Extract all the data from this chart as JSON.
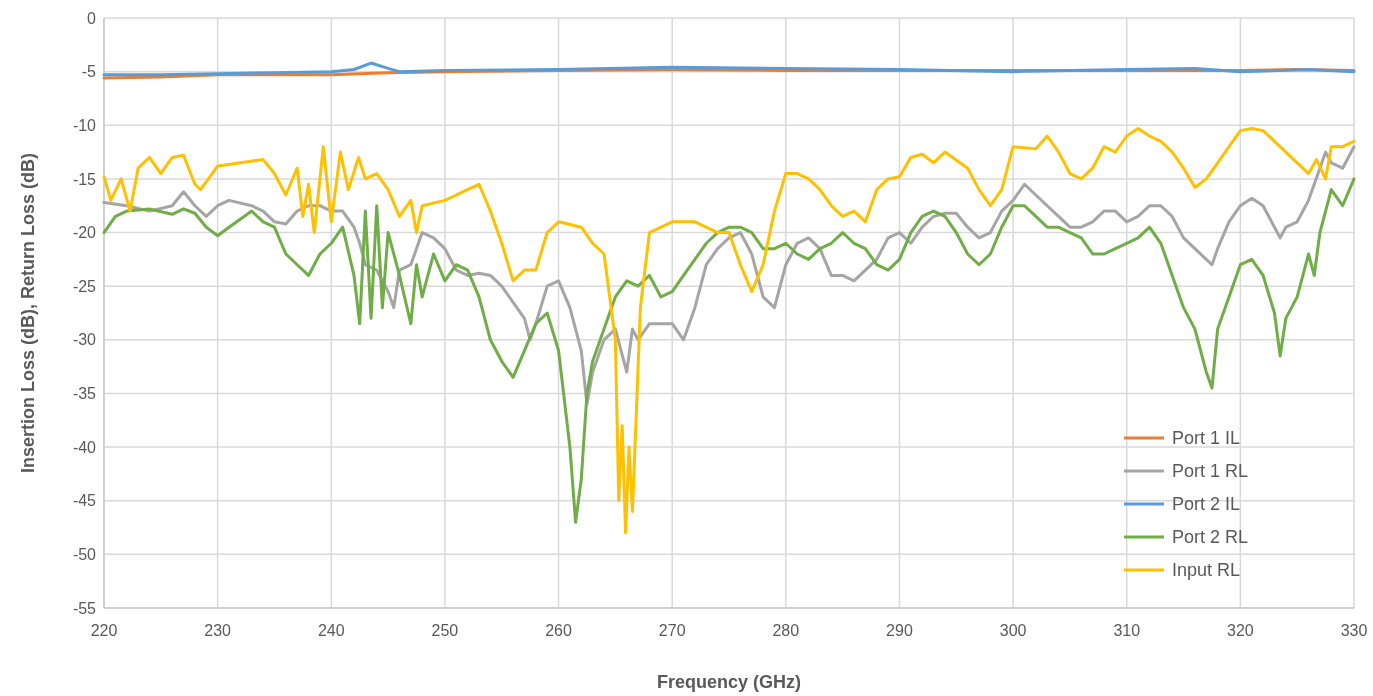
{
  "chart_data": {
    "type": "line",
    "xlabel": "Frequency (GHz)",
    "ylabel": "Insertion Loss (dB), Return Loss (dB)",
    "xlim": [
      220,
      330
    ],
    "xticks": [
      220,
      230,
      240,
      250,
      260,
      270,
      280,
      290,
      300,
      310,
      320,
      330
    ],
    "ylim": [
      -55,
      0
    ],
    "yticks": [
      -55,
      -50,
      -45,
      -40,
      -35,
      -30,
      -25,
      -20,
      -15,
      -10,
      -5,
      0
    ],
    "grid": true,
    "legend": "bottom right",
    "line_style": "solid",
    "series": [
      {
        "name": "Port 1 IL",
        "color": "#ed7d31",
        "x": [
          220,
          225,
          230,
          235,
          240,
          245,
          250,
          260,
          270,
          280,
          290,
          300,
          310,
          320,
          325,
          330
        ],
        "values": [
          -5.6,
          -5.5,
          -5.3,
          -5.3,
          -5.3,
          -5.1,
          -5.0,
          -4.9,
          -4.8,
          -4.9,
          -4.9,
          -4.9,
          -4.9,
          -4.9,
          -4.8,
          -4.9
        ]
      },
      {
        "name": "Port 1 RL",
        "color": "#a5a5a5",
        "x": [
          220,
          222,
          224,
          226,
          227,
          228,
          229,
          230,
          231,
          233,
          234,
          235,
          236,
          237,
          238,
          239,
          240,
          241,
          242,
          242.5,
          243,
          244,
          245,
          245.5,
          246,
          247,
          248,
          249,
          250,
          251,
          252,
          253,
          254,
          255,
          256,
          257,
          257.5,
          258,
          259,
          260,
          261,
          262,
          262.5,
          263,
          264,
          265,
          265.5,
          266,
          266.5,
          267,
          268,
          270,
          271,
          272,
          273,
          274,
          275,
          276,
          277,
          278,
          279,
          279.5,
          280,
          281,
          282,
          283,
          284,
          285,
          286,
          287,
          288,
          289,
          290,
          291,
          292,
          293,
          294,
          295,
          296,
          297,
          298,
          299,
          300,
          301,
          302,
          303,
          304,
          305,
          306,
          307,
          308,
          309,
          310,
          311,
          312,
          313,
          314,
          315,
          316,
          317,
          317.5,
          318,
          319,
          320,
          321,
          322,
          323,
          323.5,
          324,
          325,
          326,
          327,
          327.5,
          328,
          329,
          330
        ],
        "values": [
          -17.2,
          -17.5,
          -18,
          -17.5,
          -16.2,
          -17.5,
          -18.5,
          -17.5,
          -17,
          -17.5,
          -18,
          -19,
          -19.2,
          -18,
          -17.5,
          -17.5,
          -18,
          -18,
          -19.5,
          -21,
          -23,
          -23.5,
          -25.5,
          -27,
          -23.5,
          -23,
          -20,
          -20.5,
          -21.5,
          -23.5,
          -24,
          -23.8,
          -24,
          -25,
          -26.5,
          -28,
          -30,
          -28.5,
          -25,
          -24.5,
          -27,
          -31,
          -36,
          -33,
          -30,
          -29,
          -31,
          -33,
          -29,
          -30,
          -28.5,
          -28.5,
          -30,
          -27,
          -23,
          -21.5,
          -20.5,
          -20,
          -22,
          -26,
          -27,
          -25,
          -23,
          -21,
          -20.5,
          -21.5,
          -24,
          -24,
          -24.5,
          -23.5,
          -22.5,
          -20.5,
          -20,
          -21,
          -19.5,
          -18.5,
          -18.2,
          -18.2,
          -19.5,
          -20.5,
          -20,
          -18,
          -17,
          -15.5,
          -16.5,
          -17.5,
          -18.5,
          -19.5,
          -19.5,
          -19,
          -18,
          -18,
          -19,
          -18.5,
          -17.5,
          -17.5,
          -18.5,
          -20.5,
          -21.5,
          -22.5,
          -23,
          -21.5,
          -19,
          -17.5,
          -16.8,
          -17.5,
          -19.5,
          -20.5,
          -19.5,
          -19,
          -17,
          -14,
          -12.5,
          -13.5,
          -14,
          -12
        ]
      },
      {
        "name": "Port 2 IL",
        "color": "#5b9bd5",
        "x": [
          220,
          225,
          230,
          235,
          240,
          242,
          243.5,
          245,
          246,
          250,
          260,
          270,
          280,
          290,
          300,
          310,
          316,
          320,
          326,
          330
        ],
        "values": [
          -5.3,
          -5.3,
          -5.2,
          -5.1,
          -5.0,
          -4.8,
          -4.2,
          -4.7,
          -5.0,
          -4.9,
          -4.8,
          -4.6,
          -4.7,
          -4.8,
          -5.0,
          -4.8,
          -4.7,
          -5.0,
          -4.8,
          -5.0
        ]
      },
      {
        "name": "Port 2 RL",
        "color": "#70ad47",
        "x": [
          220,
          221,
          222,
          224,
          226,
          227,
          228,
          229,
          230,
          231,
          233,
          234,
          235,
          236,
          237,
          238,
          238.5,
          239,
          240,
          241,
          242,
          242.5,
          243,
          243.5,
          244,
          244.5,
          245,
          246,
          247,
          247.5,
          248,
          249,
          250,
          251,
          252,
          253,
          254,
          255,
          256,
          257,
          258,
          259,
          260,
          261,
          261.5,
          262,
          262.5,
          263,
          264,
          265,
          266,
          267,
          268,
          269,
          270,
          271,
          272,
          273,
          274,
          275,
          276,
          277,
          278,
          279,
          280,
          281,
          282,
          283,
          284,
          285,
          286,
          287,
          288,
          289,
          290,
          291,
          292,
          293,
          294,
          295,
          296,
          297,
          298,
          299,
          300,
          301,
          302,
          303,
          304,
          305,
          306,
          307,
          308,
          309,
          310,
          311,
          312,
          313,
          314,
          315,
          316,
          317,
          317.5,
          318,
          319,
          320,
          321,
          322,
          323,
          323.5,
          324,
          325,
          326,
          326.5,
          327,
          328,
          329,
          330
        ],
        "values": [
          -20,
          -18.5,
          -18,
          -17.8,
          -18.3,
          -17.8,
          -18.2,
          -19.5,
          -20.3,
          -19.5,
          -18,
          -19,
          -19.5,
          -22,
          -23,
          -24,
          -23,
          -22,
          -21,
          -19.5,
          -24,
          -28.5,
          -18,
          -28,
          -17.5,
          -27,
          -20,
          -24,
          -28.5,
          -23,
          -26,
          -22,
          -24.5,
          -23,
          -23.5,
          -26,
          -30,
          -32,
          -33.5,
          -31,
          -28.5,
          -27.5,
          -31,
          -40,
          -47,
          -43,
          -35,
          -32,
          -29,
          -26,
          -24.5,
          -25,
          -24,
          -26,
          -25.5,
          -24,
          -22.5,
          -21,
          -20,
          -19.5,
          -19.5,
          -20,
          -21.5,
          -21.5,
          -21,
          -22,
          -22.5,
          -21.5,
          -21,
          -20,
          -21,
          -21.5,
          -23,
          -23.5,
          -22.5,
          -20,
          -18.5,
          -18,
          -18.5,
          -20,
          -22,
          -23,
          -22,
          -19.5,
          -17.5,
          -17.5,
          -18.5,
          -19.5,
          -19.5,
          -20,
          -20.5,
          -22,
          -22,
          -21.5,
          -21,
          -20.5,
          -19.5,
          -21,
          -24,
          -27,
          -29,
          -33,
          -34.5,
          -29,
          -26,
          -23,
          -22.5,
          -24,
          -27.5,
          -31.5,
          -28,
          -26,
          -22,
          -24,
          -20,
          -16,
          -17.5,
          -15
        ]
      },
      {
        "name": "Input RL",
        "color": "#ffc000",
        "x": [
          220,
          220.6,
          221.5,
          222.3,
          223,
          224,
          225,
          226,
          227,
          228,
          228.5,
          230,
          232,
          234,
          235,
          236,
          237,
          237.5,
          238,
          238.5,
          239.3,
          240,
          240.8,
          241.5,
          242.4,
          243,
          244,
          245,
          246,
          247,
          247.5,
          248,
          250,
          252,
          253,
          254,
          255,
          256,
          257,
          258,
          259,
          260,
          262,
          263,
          264,
          265,
          265.3,
          265.6,
          265.9,
          266.2,
          266.5,
          266.8,
          267.2,
          268,
          270,
          272,
          274,
          275,
          276,
          277,
          278,
          279,
          280,
          281,
          282,
          283,
          284,
          285,
          286,
          287,
          288,
          289,
          290,
          291,
          292,
          293,
          294,
          296,
          297,
          298,
          299,
          300,
          302,
          303,
          304,
          305,
          306,
          307,
          308,
          309,
          310,
          311,
          312,
          313,
          314,
          315,
          316,
          317,
          318,
          319,
          320,
          321,
          322,
          323,
          324,
          325,
          326,
          326.7,
          327.5,
          328,
          329,
          330
        ],
        "values": [
          -14.8,
          -17,
          -15,
          -18,
          -14,
          -13,
          -14.5,
          -13,
          -12.8,
          -15.5,
          -16,
          -13.8,
          -13.5,
          -13.2,
          -14.5,
          -16.5,
          -14,
          -18.5,
          -15.5,
          -20,
          -12,
          -19,
          -12.5,
          -16,
          -13,
          -15,
          -14.5,
          -16,
          -18.5,
          -17,
          -20,
          -17.5,
          -17,
          -16,
          -15.5,
          -18,
          -21,
          -24.5,
          -23.5,
          -23.5,
          -20,
          -19,
          -19.5,
          -21,
          -22,
          -30,
          -45,
          -38,
          -48,
          -40,
          -46,
          -38,
          -27,
          -20,
          -19,
          -19,
          -20,
          -20,
          -23,
          -25.5,
          -23,
          -18,
          -14.5,
          -14.5,
          -15,
          -16,
          -17.5,
          -18.5,
          -18,
          -19,
          -16,
          -15,
          -14.8,
          -13,
          -12.7,
          -13.5,
          -12.5,
          -14,
          -16,
          -17.5,
          -16,
          -12,
          -12.2,
          -11,
          -12.5,
          -14.5,
          -15,
          -14,
          -12,
          -12.5,
          -11,
          -10.3,
          -11,
          -11.5,
          -12.5,
          -14,
          -15.8,
          -15,
          -13.5,
          -12,
          -10.5,
          -10.3,
          -10.5,
          -11.5,
          -12.5,
          -13.5,
          -14.5,
          -13.2,
          -15,
          -12,
          -12,
          -11.5
        ]
      }
    ]
  }
}
